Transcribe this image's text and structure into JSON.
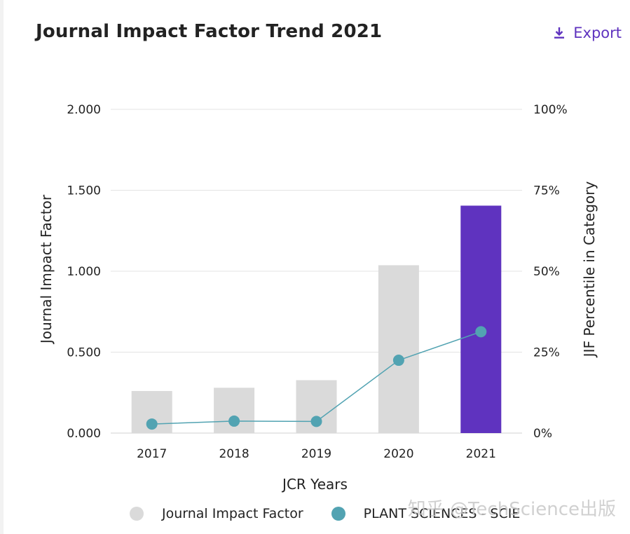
{
  "header": {
    "title": "Journal Impact Factor Trend 2021",
    "export_label": "Export"
  },
  "colors": {
    "accent": "#5f33bf",
    "bar_default": "#dadada",
    "bar_highlight": "#5f33bf",
    "line": "#52a3b2",
    "grid": "#e3e3e3"
  },
  "icons": {
    "export": "download-icon"
  },
  "chart_data": {
    "type": "bar+line",
    "categories": [
      "2017",
      "2018",
      "2019",
      "2020",
      "2021"
    ],
    "series": [
      {
        "name": "Journal Impact Factor",
        "axis": "left",
        "kind": "bar",
        "values": [
          0.26,
          0.28,
          0.327,
          1.037,
          1.405
        ],
        "highlight_index": 4
      },
      {
        "name": "PLANT SCIENCES - SCIE",
        "axis": "right",
        "kind": "line",
        "values": [
          2.8,
          3.7,
          3.6,
          22.5,
          31.3
        ]
      }
    ],
    "xlabel": "JCR Years",
    "ylabel": "Journal Impact Factor",
    "y2label": "JIF Percentile in Category",
    "ylim": [
      0,
      2
    ],
    "y2lim": [
      0,
      100
    ],
    "yticks": [
      "0.000",
      "0.500",
      "1.000",
      "1.500",
      "2.000"
    ],
    "y2ticks": [
      "0%",
      "25%",
      "50%",
      "75%",
      "100%"
    ],
    "legend_position": "bottom"
  },
  "watermark": "知乎 @TechScience出版"
}
